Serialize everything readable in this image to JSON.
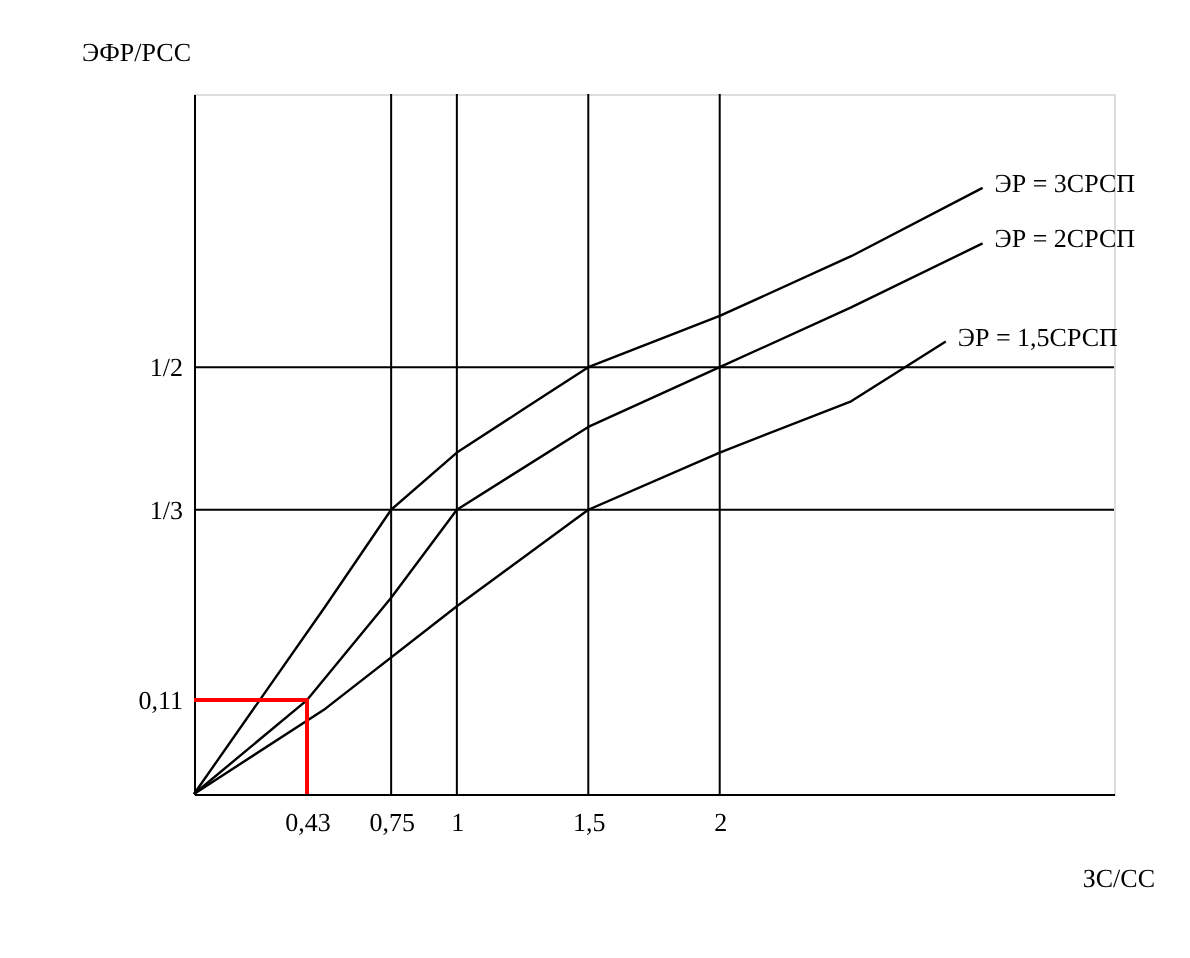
{
  "chart_data": {
    "type": "line",
    "xlabel": "ЗС/СС",
    "ylabel": "ЭФР/РСС",
    "xlim": [
      0,
      3.5
    ],
    "ylim": [
      0,
      0.82
    ],
    "xticks": [
      {
        "value": 0.43,
        "label": "0,43"
      },
      {
        "value": 0.75,
        "label": "0,75"
      },
      1,
      {
        "value": 1.5,
        "label": "1,5"
      },
      2
    ],
    "yticks": [
      {
        "value": 0.11,
        "label": "0,11"
      },
      {
        "value": 0.333,
        "label": "1/3"
      },
      {
        "value": 0.5,
        "label": "1/2"
      }
    ],
    "marker": "none",
    "line_style": "solid",
    "ref_lines": [
      {
        "axis": "x",
        "value": 0.75,
        "color": "#000000"
      },
      {
        "axis": "x",
        "value": 1,
        "color": "#000000"
      },
      {
        "axis": "x",
        "value": 1.5,
        "color": "#000000"
      },
      {
        "axis": "x",
        "value": 2,
        "color": "#000000"
      },
      {
        "axis": "y",
        "value": 0.333,
        "color": "#000000"
      },
      {
        "axis": "y",
        "value": 0.5,
        "color": "#000000"
      }
    ],
    "series": [
      {
        "name": "ЭР = 3СРСП",
        "color": "#000000",
        "x": [
          0,
          0.25,
          0.5,
          0.75,
          1,
          1.25,
          1.5,
          2,
          2.5,
          3.0
        ],
        "values": [
          0,
          0.11,
          0.22,
          0.333,
          0.4,
          0.45,
          0.5,
          0.56,
          0.63,
          0.71
        ]
      },
      {
        "name": "ЭР = 2СРСП",
        "color": "#000000",
        "x": [
          0,
          0.43,
          0.75,
          1,
          1.5,
          2,
          2.5,
          3.0
        ],
        "values": [
          0,
          0.11,
          0.23,
          0.333,
          0.43,
          0.5,
          0.57,
          0.645
        ]
      },
      {
        "name": "ЭР = 1,5СРСП",
        "color": "#000000",
        "x": [
          0,
          0.5,
          1,
          1.5,
          2,
          2.5,
          2.86
        ],
        "values": [
          0,
          0.1,
          0.22,
          0.333,
          0.4,
          0.46,
          0.53
        ]
      },
      {
        "color": "#ff0000",
        "x": [
          0,
          0.43,
          0.43
        ],
        "values": [
          0.11,
          0.11,
          0
        ]
      }
    ]
  }
}
